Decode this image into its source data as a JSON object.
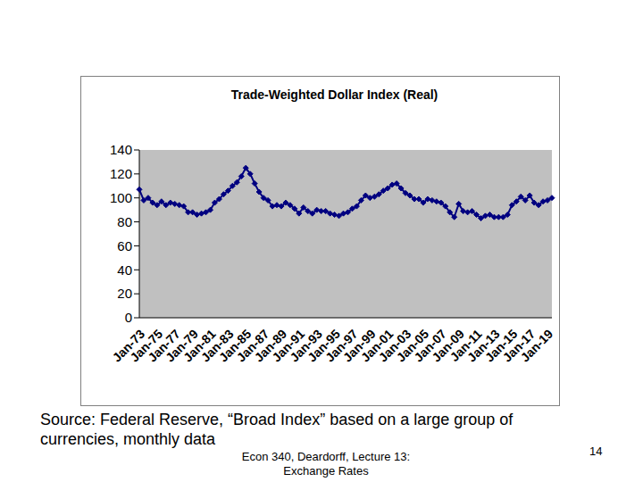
{
  "chart_data": {
    "type": "line",
    "title": "Trade-Weighted Dollar Index (Real)",
    "categories": [
      "Jan-73",
      null,
      null,
      null,
      "Jan-75",
      null,
      null,
      null,
      "Jan-77",
      null,
      null,
      null,
      "Jan-79",
      null,
      null,
      null,
      "Jan-81",
      null,
      null,
      null,
      "Jan-83",
      null,
      null,
      null,
      "Jan-85",
      null,
      null,
      null,
      "Jan-87",
      null,
      null,
      null,
      "Jan-89",
      null,
      null,
      null,
      "Jan-91",
      null,
      null,
      null,
      "Jan-93",
      null,
      null,
      null,
      "Jan-95",
      null,
      null,
      null,
      "Jan-97",
      null,
      null,
      null,
      "Jan-99",
      null,
      null,
      null,
      "Jan-01",
      null,
      null,
      null,
      "Jan-03",
      null,
      null,
      null,
      "Jan-05",
      null,
      null,
      null,
      "Jan-07",
      null,
      null,
      null,
      "Jan-09",
      null,
      null,
      null,
      "Jan-11",
      null,
      null,
      null,
      "Jan-13",
      null,
      null,
      null,
      "Jan-15",
      null,
      null,
      null,
      "Jan-17",
      null,
      null,
      null,
      "Jan-19",
      null
    ],
    "values": [
      107,
      98,
      100,
      96,
      94,
      97,
      94,
      96,
      95,
      94,
      93,
      88,
      88,
      86,
      87,
      88,
      90,
      96,
      99,
      103,
      106,
      110,
      113,
      118,
      125,
      120,
      112,
      105,
      100,
      98,
      93,
      94,
      93,
      96,
      94,
      91,
      87,
      92,
      89,
      87,
      90,
      89,
      89,
      87,
      86,
      85,
      87,
      88,
      91,
      93,
      98,
      102,
      100,
      101,
      103,
      106,
      108,
      111,
      112,
      108,
      104,
      102,
      99,
      99,
      96,
      99,
      98,
      97,
      96,
      93,
      88,
      84,
      95,
      89,
      88,
      89,
      86,
      83,
      85,
      86,
      84,
      84,
      84,
      86,
      94,
      97,
      101,
      98,
      102,
      96,
      94,
      97,
      98,
      100
    ],
    "color": "#000080",
    "marker": "diamond",
    "ylim": [
      0,
      140
    ],
    "yticks": [
      0,
      20,
      40,
      60,
      80,
      100,
      120,
      140
    ],
    "grid": false
  },
  "source": "Source:  Federal Reserve, “Broad Index” based on a large group of currencies, monthly data",
  "footer": [
    "Econ 340, Deardorff, Lecture 13:",
    "Exchange Rates"
  ],
  "page_number": 14
}
